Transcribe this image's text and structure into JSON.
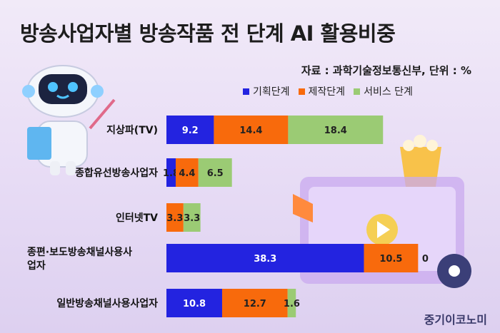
{
  "title": "방송사업자별 방송작품 전 단계 AI 활용비중",
  "source": "자료 : 과학기술정보통신부, 단위 : %",
  "publisher": "중기이코노미",
  "colors": {
    "planning": "#2323e0",
    "production": "#f86a0c",
    "service": "#9bcb74"
  },
  "legend": [
    {
      "label": "기획단계",
      "color": "#2323e0"
    },
    {
      "label": "제작단계",
      "color": "#f86a0c"
    },
    {
      "label": "서비스 단계",
      "color": "#9bcb74"
    }
  ],
  "chart_data": {
    "type": "bar",
    "orientation": "horizontal",
    "stacked": true,
    "categories": [
      "지상파(TV)",
      "종합유선방송사업자",
      "인터넷TV",
      "종편·보도방송채널사용사업자",
      "일반방송채널사용사업자"
    ],
    "series": [
      {
        "name": "기획단계",
        "values": [
          9.2,
          1.8,
          0,
          38.3,
          10.8
        ]
      },
      {
        "name": "제작단계",
        "values": [
          14.4,
          4.4,
          3.3,
          10.5,
          12.7
        ]
      },
      {
        "name": "서비스 단계",
        "values": [
          18.4,
          6.5,
          3.3,
          0,
          1.6
        ]
      }
    ],
    "value_labels": [
      [
        "9.2",
        "14.4",
        "18.4"
      ],
      [
        "1.8",
        "4.4",
        "6.5"
      ],
      [
        "0",
        "3.3",
        "3.3"
      ],
      [
        "38.3",
        "10.5",
        "0"
      ],
      [
        "10.8",
        "12.7",
        "1.6"
      ]
    ],
    "unit": "%",
    "legend_position": "top-right",
    "grid": false
  }
}
